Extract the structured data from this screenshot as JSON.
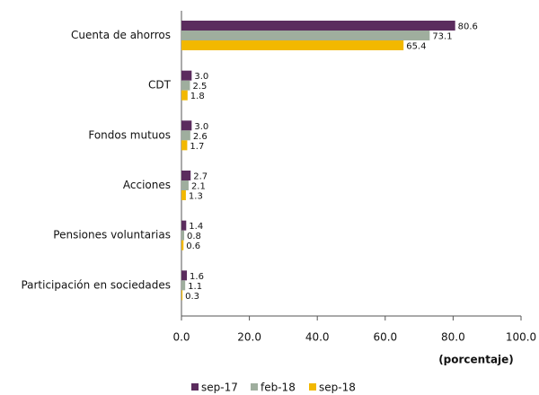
{
  "chart_data": {
    "type": "bar",
    "orientation": "horizontal",
    "categories": [
      "Cuenta de ahorros",
      "CDT",
      "Fondos mutuos",
      "Acciones",
      "Pensiones voluntarias",
      "Participación en sociedades"
    ],
    "series": [
      {
        "name": "sep-17",
        "color": "#5b2c5e",
        "values": [
          80.6,
          3.0,
          3.0,
          2.7,
          1.4,
          1.6
        ],
        "value_labels": [
          "80.6",
          "3.0",
          "3.0",
          "2.7",
          "1.4",
          "1.6"
        ]
      },
      {
        "name": "feb-18",
        "color": "#9fae9e",
        "values": [
          73.1,
          2.5,
          2.6,
          2.1,
          0.8,
          1.1
        ],
        "value_labels": [
          "73.1",
          "2.5",
          "2.6",
          "2.1",
          "0.8",
          "1.1"
        ]
      },
      {
        "name": "sep-18",
        "color": "#f2b800",
        "values": [
          65.4,
          1.8,
          1.7,
          1.3,
          0.6,
          0.3
        ],
        "value_labels": [
          "65.4",
          "1.8",
          "1.7",
          "1.3",
          "0.6",
          "0.3"
        ]
      }
    ],
    "xlabel": "(porcentaje)",
    "xlim": [
      0,
      100
    ],
    "xticks": [
      {
        "value": 0,
        "label": "0.0"
      },
      {
        "value": 20,
        "label": "20.0"
      },
      {
        "value": 40,
        "label": "40.0"
      },
      {
        "value": 60,
        "label": "60.0"
      },
      {
        "value": 80,
        "label": "80.0"
      },
      {
        "value": 100,
        "label": "100.0"
      }
    ],
    "grid": false,
    "legend": "bottom"
  }
}
